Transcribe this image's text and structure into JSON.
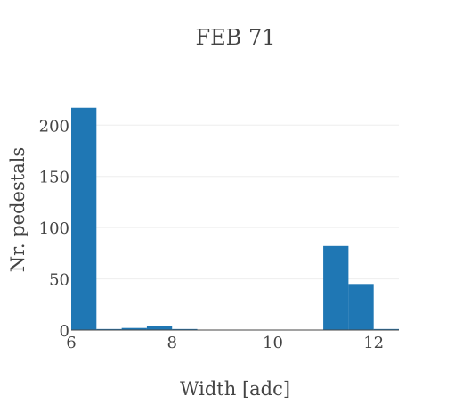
{
  "chart_data": {
    "type": "bar",
    "title": "FEB 71",
    "xlabel": "Width [adc]",
    "ylabel": "Nr. pedestals",
    "xlim": [
      6,
      12.5
    ],
    "ylim": [
      0,
      222
    ],
    "x_ticks": [
      6,
      8,
      10,
      12
    ],
    "y_ticks": [
      0,
      50,
      100,
      150,
      200
    ],
    "grid": true,
    "legend": "none",
    "bar_color": "#1f77b4",
    "bins": [
      {
        "x0": 6.0,
        "x1": 6.5,
        "count": 217
      },
      {
        "x0": 6.5,
        "x1": 7.0,
        "count": 1
      },
      {
        "x0": 7.0,
        "x1": 7.5,
        "count": 2
      },
      {
        "x0": 7.5,
        "x1": 8.0,
        "count": 4
      },
      {
        "x0": 8.0,
        "x1": 8.5,
        "count": 1
      },
      {
        "x0": 8.5,
        "x1": 9.0,
        "count": 0
      },
      {
        "x0": 9.0,
        "x1": 9.5,
        "count": 0
      },
      {
        "x0": 9.5,
        "x1": 10.0,
        "count": 0
      },
      {
        "x0": 10.0,
        "x1": 10.5,
        "count": 0
      },
      {
        "x0": 10.5,
        "x1": 11.0,
        "count": 0
      },
      {
        "x0": 11.0,
        "x1": 11.5,
        "count": 82
      },
      {
        "x0": 11.5,
        "x1": 12.0,
        "count": 45
      },
      {
        "x0": 12.0,
        "x1": 12.5,
        "count": 1
      }
    ]
  }
}
